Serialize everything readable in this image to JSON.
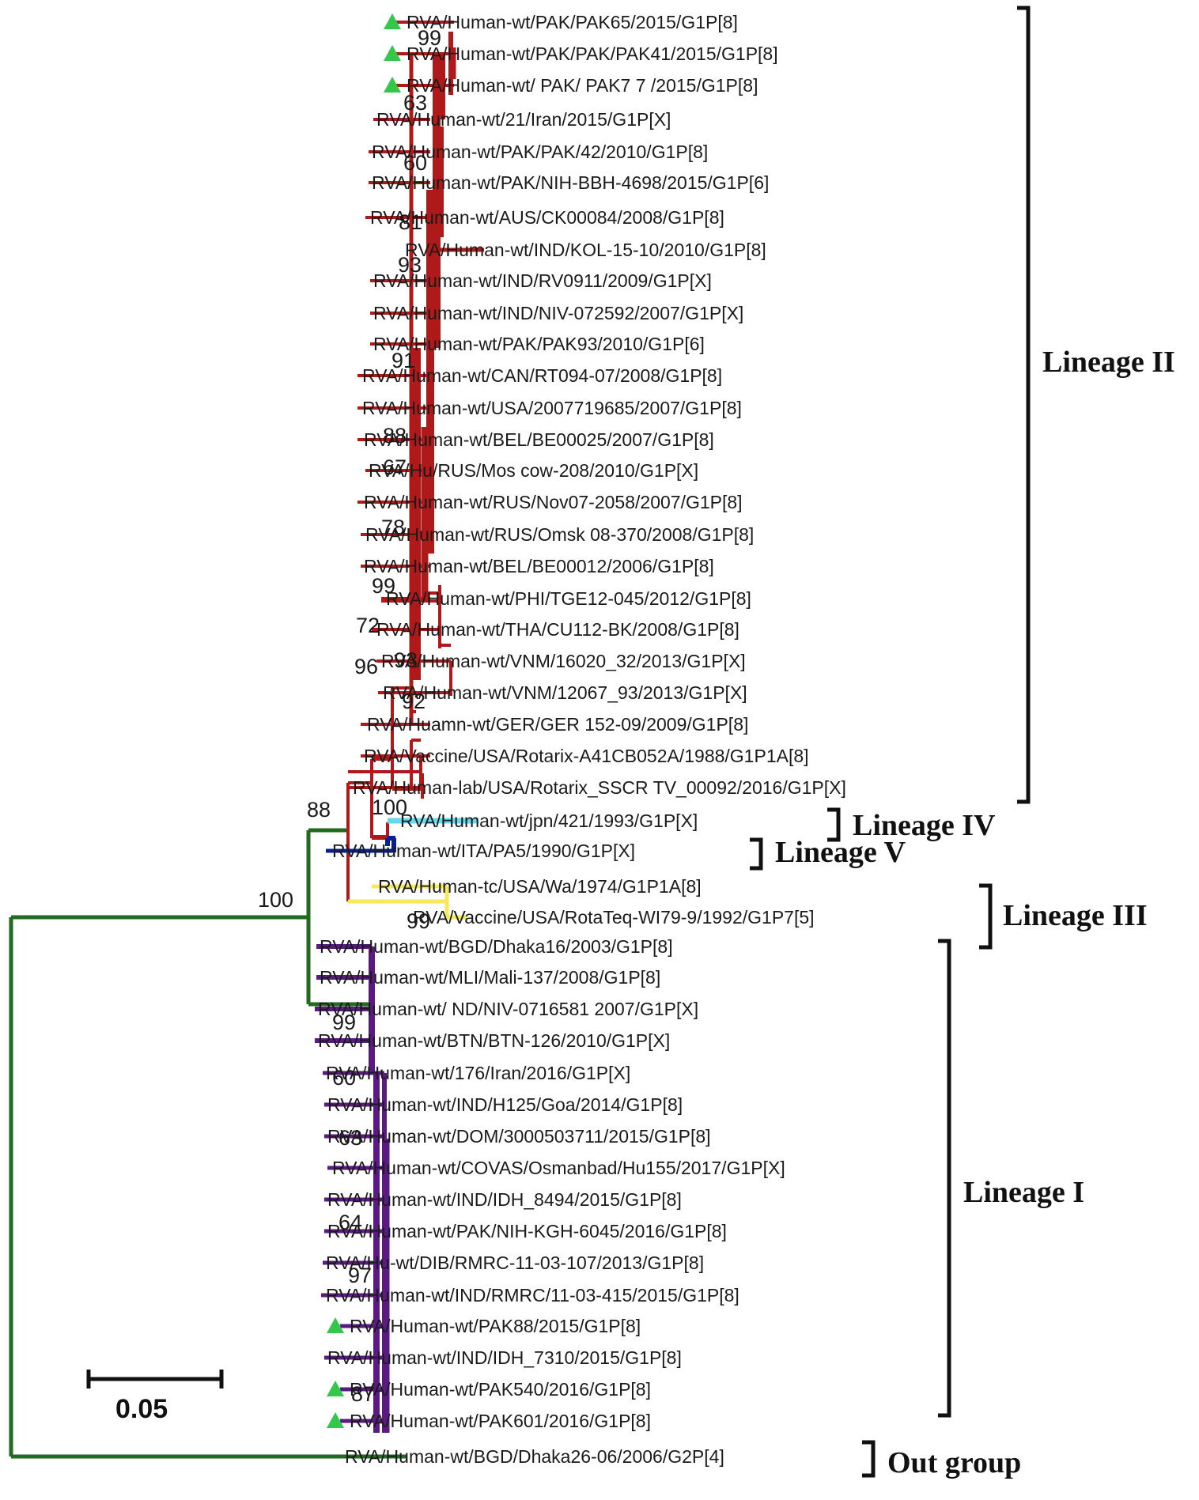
{
  "colors": {
    "lineage_II": "#b01919",
    "lineage_IV": "#66d9ec",
    "lineage_V": "#0a1f8f",
    "lineage_III": "#f6ea5a",
    "lineage_I": "#5b1a82",
    "root": "#1f6b1f",
    "marker": "#33c84a"
  },
  "taxa": [
    {
      "label": "RVA/Human-wt/PAK/PAK65/2015/G1P[8]",
      "marker": true
    },
    {
      "label": "RVA/Human-wt/PAK/PAK/PAK41/2015/G1P[8]",
      "marker": true
    },
    {
      "label": "RVA/Human-wt/ PAK/ PAK7 7 /2015/G1P[8]",
      "marker": true
    },
    {
      "label": "RVA/Human-wt/21/Iran/2015/G1P[X]"
    },
    {
      "label": "RVA/Human-wt/PAK/PAK/42/2010/G1P[8]"
    },
    {
      "label": "RVA/Human-wt/PAK/NIH-BBH-4698/2015/G1P[6]"
    },
    {
      "label": "RVA/Human-wt/AUS/CK00084/2008/G1P[8]"
    },
    {
      "label": "RVA/Human-wt/IND/KOL-15-10/2010/G1P[8]"
    },
    {
      "label": "RVA/Human-wt/IND/RV0911/2009/G1P[X]"
    },
    {
      "label": "RVA/Human-wt/IND/NIV-072592/2007/G1P[X]"
    },
    {
      "label": "RVA/Human-wt/PAK/PAK93/2010/G1P[6]"
    },
    {
      "label": "RVA/Human-wt/CAN/RT094-07/2008/G1P[8]"
    },
    {
      "label": "RVA/Human-wt/USA/2007719685/2007/G1P[8]"
    },
    {
      "label": "RVA/Human-wt/BEL/BE00025/2007/G1P[8]"
    },
    {
      "label": "RVA/Hu/RUS/Mos cow-208/2010/G1P[X]"
    },
    {
      "label": "RVA/Human-wt/RUS/Nov07-2058/2007/G1P[8]"
    },
    {
      "label": "RVA/Human-wt/RUS/Omsk 08-370/2008/G1P[8]"
    },
    {
      "label": "RVA/Human-wt/BEL/BE00012/2006/G1P[8]"
    },
    {
      "label": "RVA/Human-wt/PHI/TGE12-045/2012/G1P[8]"
    },
    {
      "label": "RVA/Human-wt/THA/CU112-BK/2008/G1P[8]"
    },
    {
      "label": "RVA/Human-wt/VNM/16020_32/2013/G1P[X]"
    },
    {
      "label": "RVA/Human-wt/VNM/12067_93/2013/G1P[X]"
    },
    {
      "label": "RVA/Huamn-wt/GER/GER 152-09/2009/G1P[8]"
    },
    {
      "label": "RVA/Vaccine/USA/Rotarix-A41CB052A/1988/G1P1A[8]"
    },
    {
      "label": "RVA/Human-lab/USA/Rotarix_SSCR TV_00092/2016/G1P[X]"
    },
    {
      "label": "RVA/Human-wt/jpn/421/1993/G1P[X]"
    },
    {
      "label": "RVA/Human-wt/ITA/PA5/1990/G1P[X]"
    },
    {
      "label": "RVA/Human-tc/USA/Wa/1974/G1P1A[8]"
    },
    {
      "label": "RVA/Vaccine/USA/RotaTeq-WI79-9/1992/G1P7[5]"
    },
    {
      "label": "RVA/Human-wt/BGD/Dhaka16/2003/G1P[8]"
    },
    {
      "label": "RVA/Human-wt/MLI/Mali-137/2008/G1P[8]"
    },
    {
      "label": "RVA/Human-wt/ ND/NIV-0716581 2007/G1P[X]"
    },
    {
      "label": "RVA/Human-wt/BTN/BTN-126/2010/G1P[X]"
    },
    {
      "label": "RVA/Human-wt/176/Iran/2016/G1P[X]"
    },
    {
      "label": "RVA/Human-wt/IND/H125/Goa/2014/G1P[8]"
    },
    {
      "label": "RVA/Human-wt/DOM/3000503711/2015/G1P[8]"
    },
    {
      "label": "RVA/Human-wt/COVAS/Osmanbad/Hu155/2017/G1P[X]"
    },
    {
      "label": "RVA/Human-wt/IND/IDH_8494/2015/G1P[8]"
    },
    {
      "label": "RVA/Human-wt/PAK/NIH-KGH-6045/2016/G1P[8]"
    },
    {
      "label": "RVA/Hu-wt/DIB/RMRC-11-03-107/2013/G1P[8]"
    },
    {
      "label": "RVA/Human-wt/IND/RMRC/11-03-415/2015/G1P[8]"
    },
    {
      "label": "RVA/Human-wt/PAK88/2015/G1P[8]",
      "marker": true
    },
    {
      "label": "RVA/Human-wt/IND/IDH_7310/2015/G1P[8]"
    },
    {
      "label": "RVA/Human-wt/PAK540/2016/G1P[8]",
      "marker": true
    },
    {
      "label": "RVA/Human-wt/PAK601/2016/G1P[8]",
      "marker": true
    },
    {
      "label": "RVA/Human-wt/BGD/Dhaka26-06/2006/G2P[4]"
    }
  ],
  "bootstrap": [
    "99",
    "63",
    "60",
    "81",
    "93",
    "91",
    "88",
    "67",
    "78",
    "99",
    "72",
    "96",
    "93",
    "92",
    "100",
    "88",
    "100",
    "99",
    "99",
    "60",
    "63",
    "64",
    "97",
    "87"
  ],
  "lineages": [
    {
      "label": "Lineage II"
    },
    {
      "label": "Lineage IV"
    },
    {
      "label": "Lineage V"
    },
    {
      "label": "Lineage III"
    },
    {
      "label": "Lineage I"
    },
    {
      "label": "Out group"
    }
  ],
  "scale_bar": {
    "label": "0.05"
  }
}
